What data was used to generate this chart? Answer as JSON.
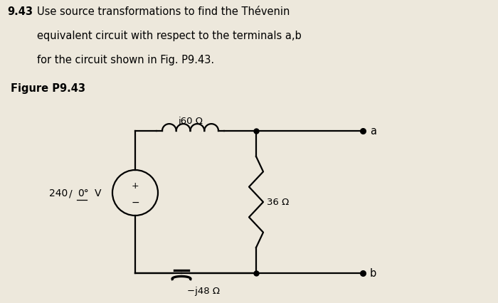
{
  "title_num": "9.43",
  "title_text": "Use source transformations to find the Thévenin",
  "title_line2": "equivalent circuit with respect to the terminals a,b",
  "title_line3": "for the circuit shown in Fig. P9.43.",
  "figure_label": "Figure P9.43",
  "source_voltage": "240",
  "source_angle": "0°",
  "source_unit": "V",
  "inductor_label": "j60 Ω",
  "capacitor_label": "−j48 Ω",
  "resistor_label": "36 Ω",
  "terminal_a": "a",
  "terminal_b": "b",
  "bg_color": "#ede8dc",
  "text_color": "#000000",
  "circuit_color": "#000000",
  "lw": 1.6
}
